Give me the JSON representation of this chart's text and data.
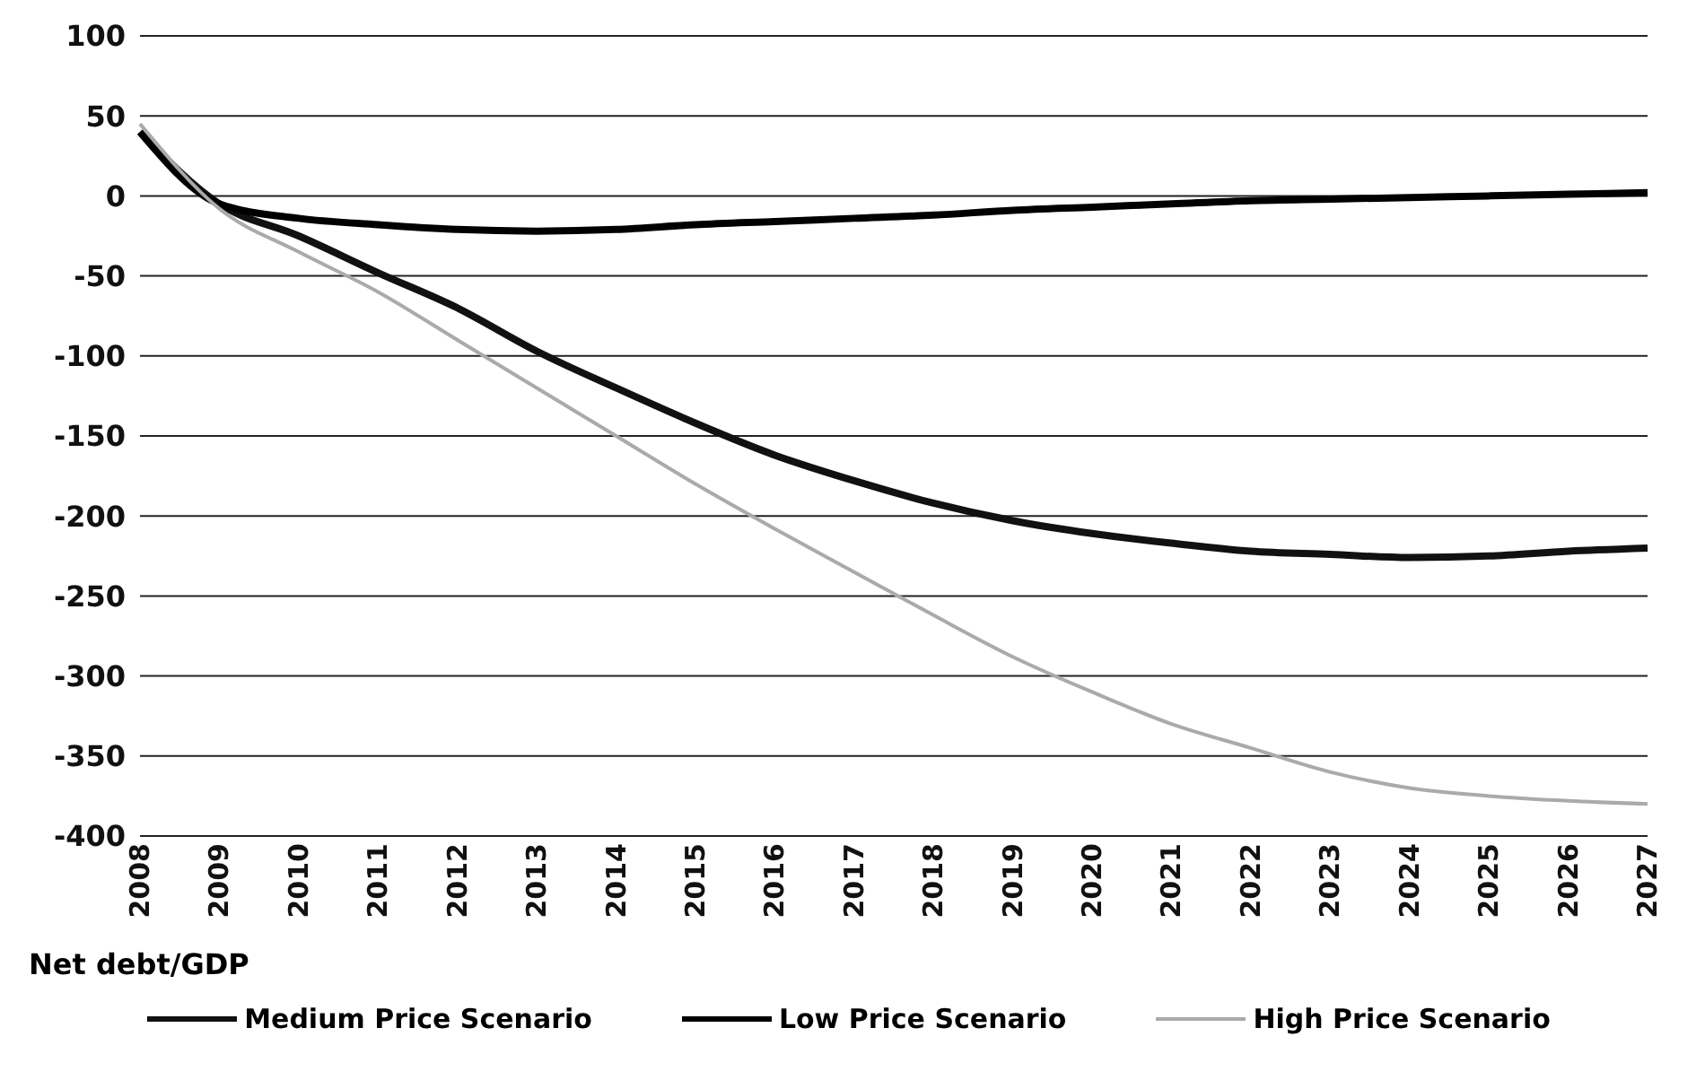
{
  "chart_data": {
    "type": "line",
    "ylabel": "Net debt/GDP",
    "categories": [
      "2008",
      "2009",
      "2010",
      "2011",
      "2012",
      "2013",
      "2014",
      "2015",
      "2016",
      "2017",
      "2018",
      "2019",
      "2020",
      "2021",
      "2022",
      "2023",
      "2024",
      "2025",
      "2026",
      "2027"
    ],
    "series": [
      {
        "name": "Medium Price Scenario",
        "color": "#111111",
        "values": [
          40,
          -5,
          -25,
          -48,
          -70,
          -97,
          -120,
          -142,
          -162,
          -178,
          -192,
          -203,
          -211,
          -217,
          -222,
          -224,
          -226,
          -225,
          -222,
          -220
        ]
      },
      {
        "name": "Low Price Scenario",
        "color": "#000000",
        "values": [
          40,
          -5,
          -14,
          -18,
          -21,
          -22,
          -21,
          -18,
          -16,
          -14,
          -12,
          -9,
          -7,
          -5,
          -3,
          -2,
          -1,
          0,
          1,
          2
        ]
      },
      {
        "name": "High Price Scenario",
        "color": "#aaaaaa",
        "values": [
          45,
          -8,
          -35,
          -60,
          -90,
          -120,
          -150,
          -180,
          -208,
          -235,
          -262,
          -288,
          -310,
          -330,
          -345,
          -360,
          -370,
          -375,
          -378,
          -380
        ]
      }
    ],
    "ylim": [
      -400,
      100
    ],
    "yticks": [
      -400,
      -350,
      -300,
      -250,
      -200,
      -150,
      -100,
      -50,
      0,
      50,
      100
    ],
    "grid": "y",
    "legend": "bottom",
    "marker": "none",
    "line_style": "solid"
  }
}
